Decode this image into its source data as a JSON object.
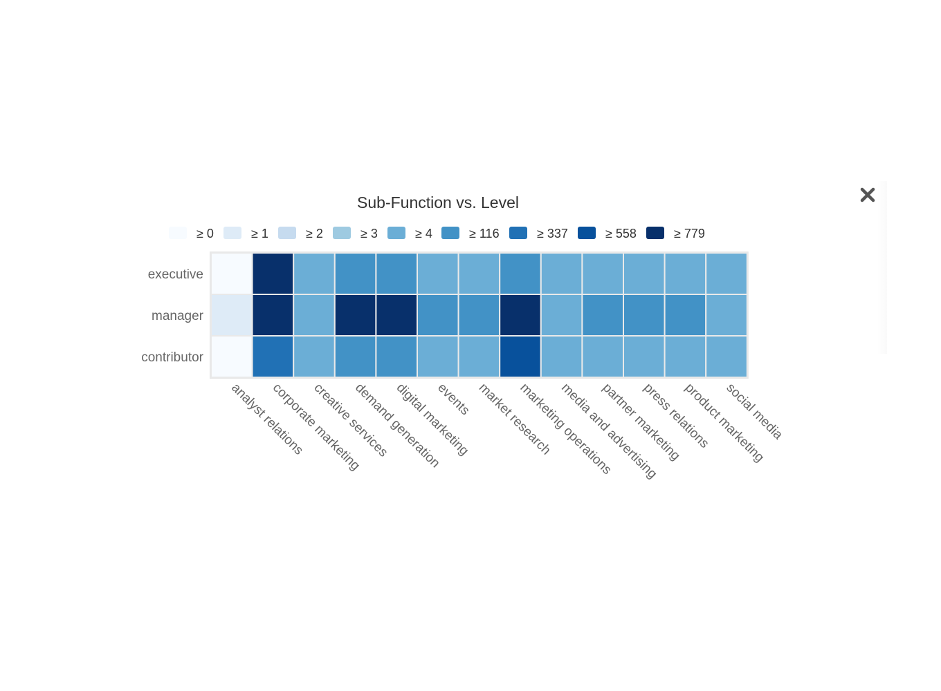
{
  "close_button": {
    "icon": "close-icon"
  },
  "chart_data": {
    "type": "heatmap",
    "title": "Sub-Function vs. Level",
    "x_categories": [
      "analyst relations",
      "corporate marketing",
      "creative services",
      "demand generation",
      "digital marketing",
      "events",
      "market research",
      "marketing operations",
      "media and advertising",
      "partner marketing",
      "press relations",
      "product marketing",
      "social media"
    ],
    "y_categories": [
      "executive",
      "manager",
      "contributor"
    ],
    "legend": [
      {
        "label": "≥ 0",
        "threshold": 0,
        "color": "#f7fbff"
      },
      {
        "label": "≥ 1",
        "threshold": 1,
        "color": "#deebf7"
      },
      {
        "label": "≥ 2",
        "threshold": 2,
        "color": "#c6dbef"
      },
      {
        "label": "≥ 3",
        "threshold": 3,
        "color": "#9ecae1"
      },
      {
        "label": "≥ 4",
        "threshold": 4,
        "color": "#6baed6"
      },
      {
        "label": "≥ 116",
        "threshold": 116,
        "color": "#4292c6"
      },
      {
        "label": "≥ 337",
        "threshold": 337,
        "color": "#2171b5"
      },
      {
        "label": "≥ 558",
        "threshold": 558,
        "color": "#08519c"
      },
      {
        "label": "≥ 779",
        "threshold": 779,
        "color": "#08306b"
      }
    ],
    "color_bins": [
      [
        0,
        8,
        4,
        5,
        5,
        4,
        4,
        5,
        4,
        4,
        4,
        4,
        4
      ],
      [
        1,
        8,
        4,
        8,
        8,
        5,
        5,
        8,
        4,
        5,
        5,
        5,
        4
      ],
      [
        0,
        6,
        4,
        5,
        5,
        4,
        4,
        7,
        4,
        4,
        4,
        4,
        4
      ]
    ],
    "legend_position": "top",
    "grid": false
  }
}
